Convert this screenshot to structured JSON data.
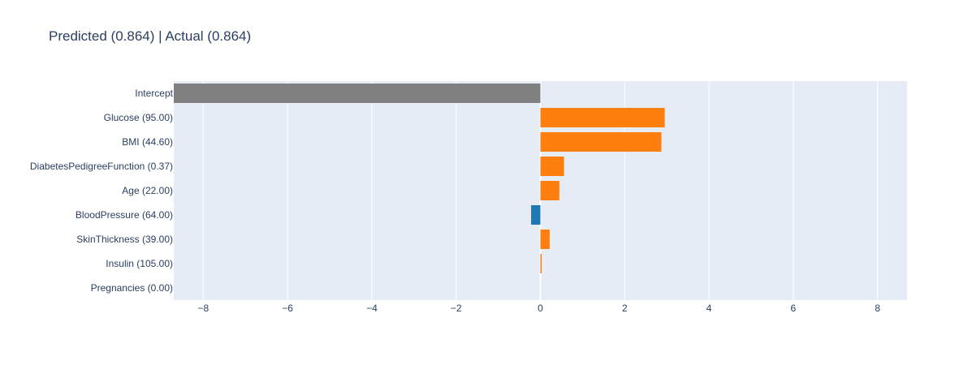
{
  "chart_data": {
    "type": "bar",
    "orientation": "horizontal",
    "title": "Predicted (0.864) | Actual (0.864)",
    "xlabel": "",
    "ylabel": "",
    "xlim": [
      -8.7,
      8.7
    ],
    "x_ticks": [
      -8,
      -6,
      -4,
      -2,
      0,
      2,
      4,
      6,
      8
    ],
    "x_tick_labels": [
      "−8",
      "−6",
      "−4",
      "−2",
      "0",
      "2",
      "4",
      "6",
      "8"
    ],
    "grid": true,
    "categories": [
      "Intercept",
      "Glucose (95.00)",
      "BMI (44.60)",
      "DiabetesPedigreeFunction (0.37)",
      "Age (22.00)",
      "BloodPressure (64.00)",
      "SkinThickness (39.00)",
      "Insulin (105.00)",
      "Pregnancies (0.00)"
    ],
    "values": [
      -8.7,
      2.95,
      2.87,
      0.56,
      0.45,
      -0.22,
      0.22,
      0.03,
      0.0
    ],
    "bar_colors": [
      "#808080",
      "#ff7f0e",
      "#ff7f0e",
      "#ff7f0e",
      "#ff7f0e",
      "#1f77b4",
      "#ff7f0e",
      "#ff7f0e",
      "#ff7f0e"
    ]
  },
  "colors": {
    "plot_background": "#e5ecf6",
    "grid": "#ffffff",
    "text": "#2a3f5f",
    "positive": "#ff7f0e",
    "negative": "#1f77b4",
    "intercept": "#808080"
  }
}
